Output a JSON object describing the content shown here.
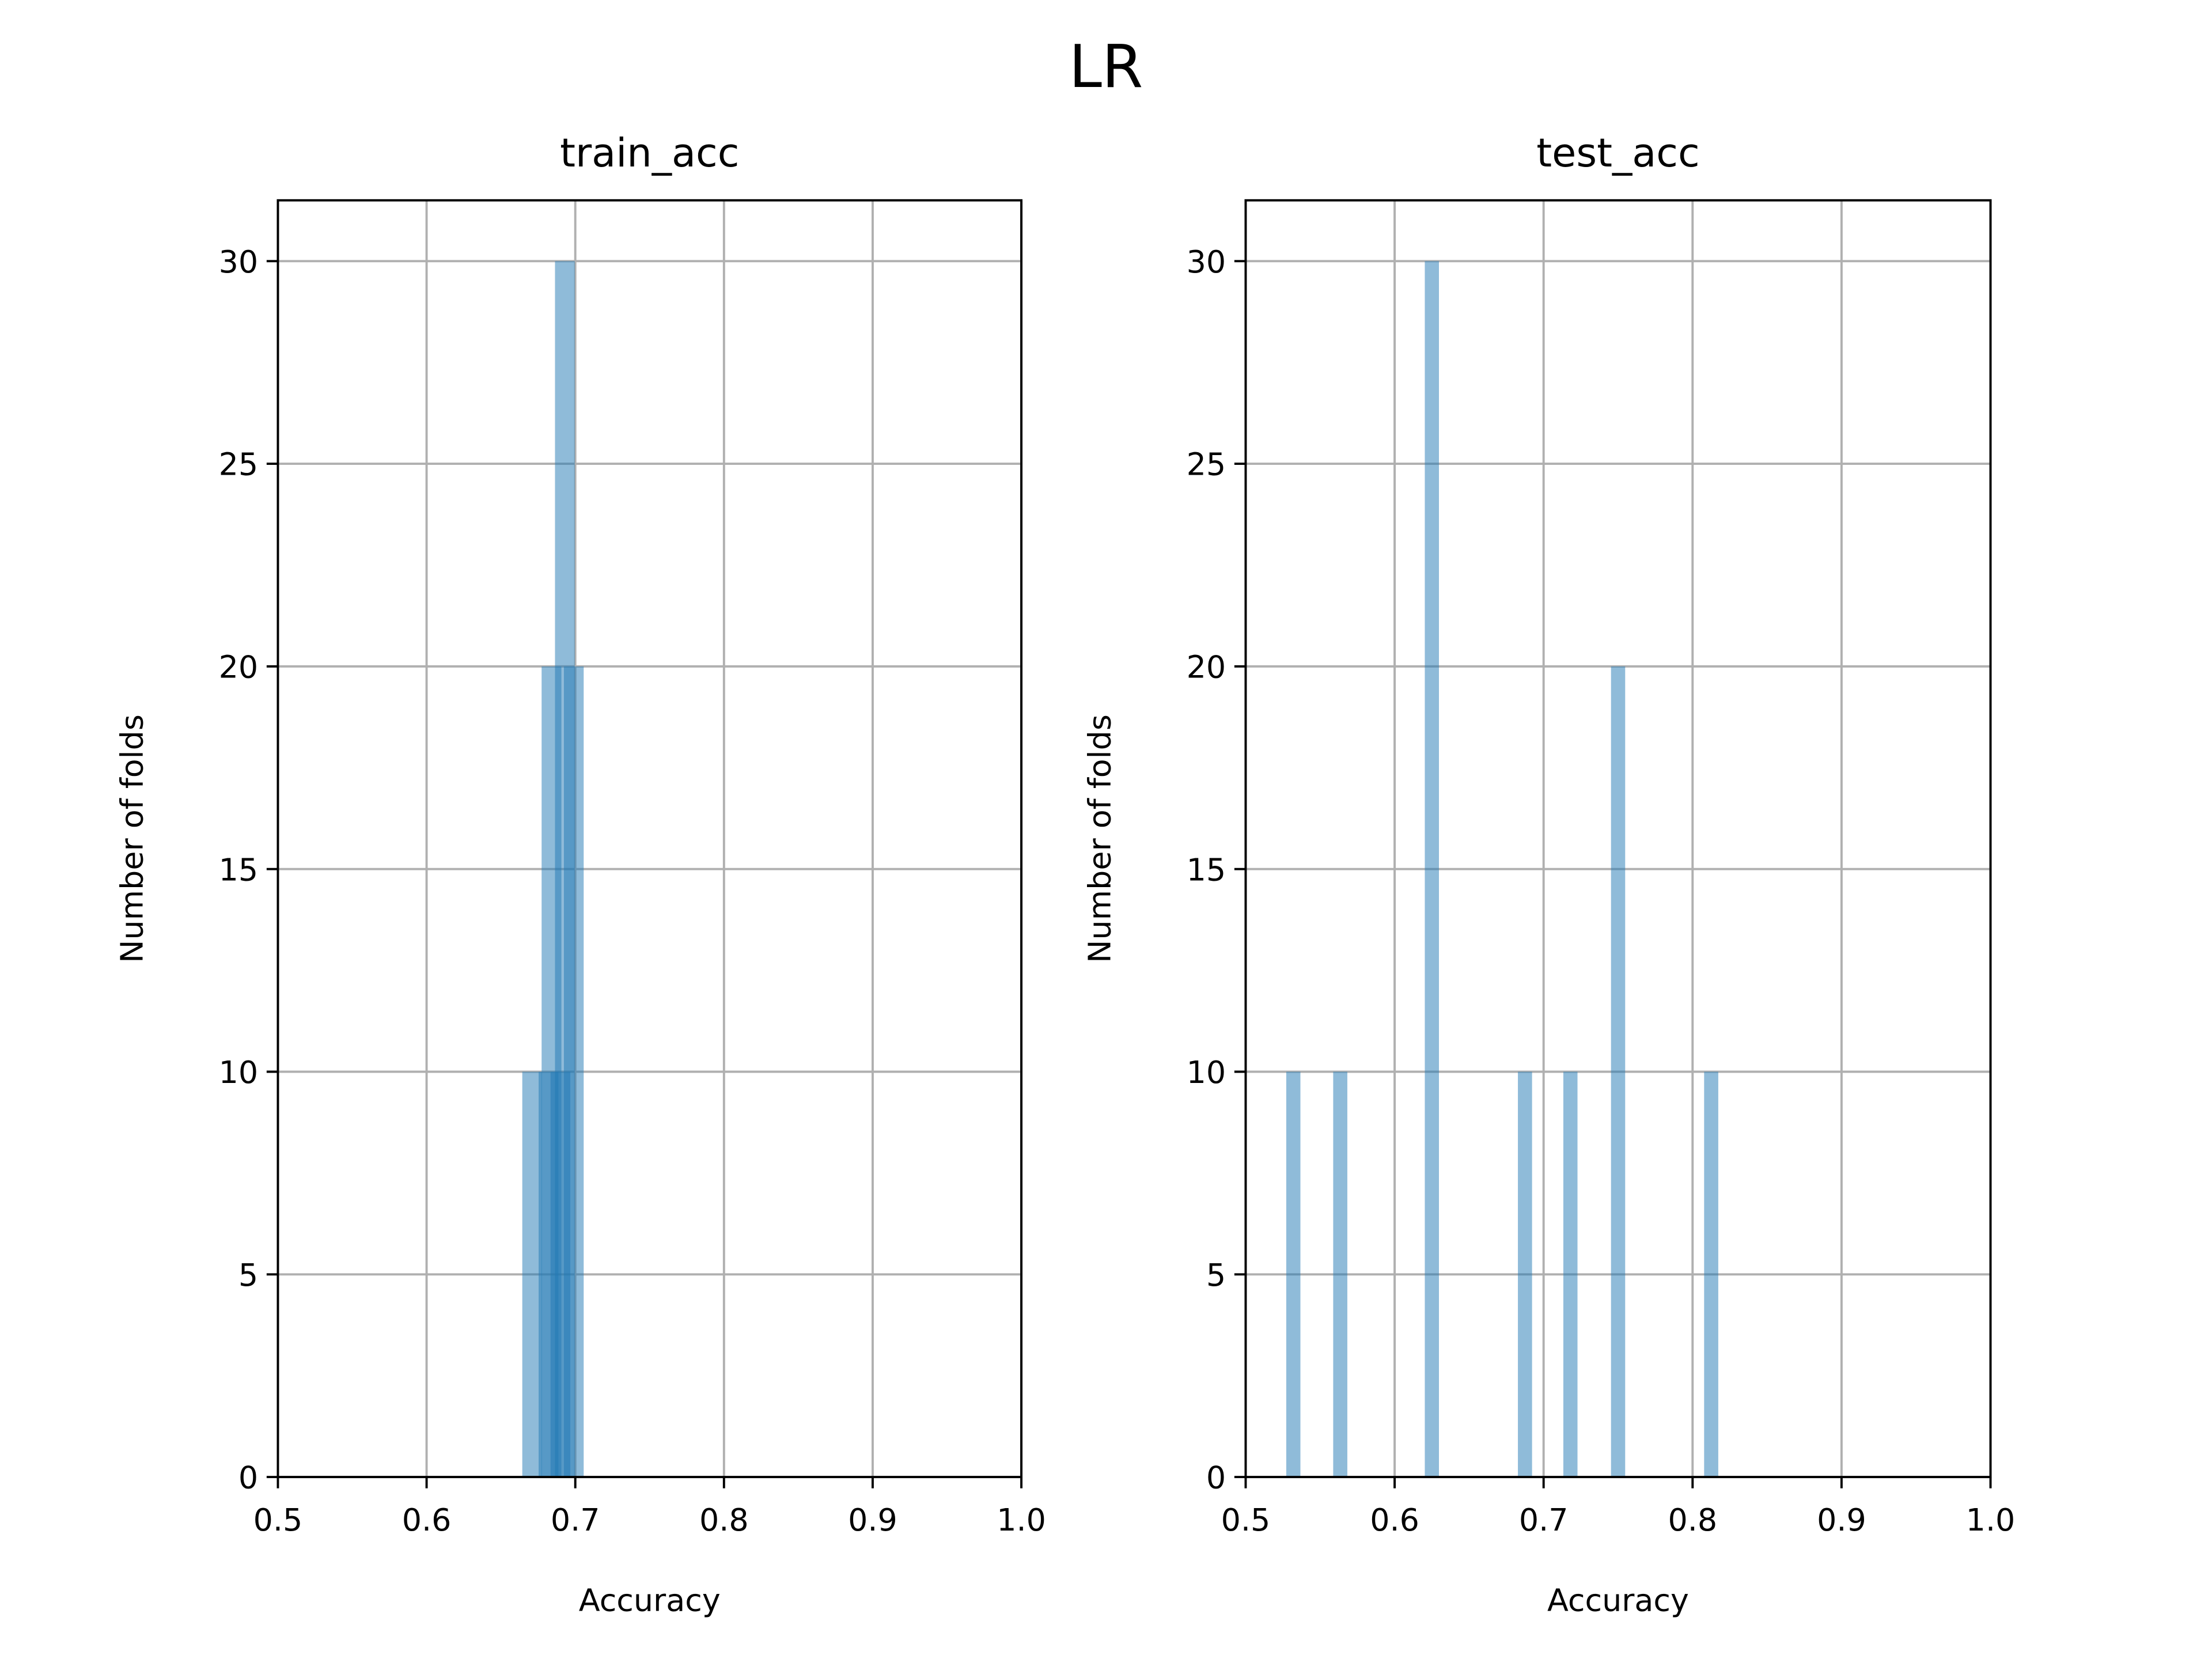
{
  "title": "LR",
  "chart_data": [
    {
      "type": "bar",
      "title": "train_acc",
      "x_label": "Accuracy",
      "y_label": "Number of folds",
      "x": [
        0.671,
        0.682,
        0.684,
        0.69,
        0.693,
        0.699
      ],
      "values": [
        10,
        10,
        20,
        10,
        30,
        20
      ],
      "bar_width": 0.0133,
      "color": "#1f77b4",
      "alpha": 0.5,
      "xlim": [
        0.5,
        1
      ],
      "xticks": [
        0.5,
        0.6,
        0.7,
        0.8,
        0.9,
        {
          "value": 1,
          "label": "1.0"
        }
      ],
      "ylim": [
        0,
        31.5
      ],
      "yticks": [
        0,
        5,
        10,
        15,
        20,
        25,
        30
      ],
      "grid": true
    },
    {
      "type": "bar",
      "title": "test_acc",
      "x_label": "Accuracy",
      "y_label": "Number of folds",
      "x": [
        0.532,
        0.5635,
        0.625,
        0.6875,
        0.718,
        0.75,
        0.8125
      ],
      "values": [
        10,
        10,
        30,
        10,
        10,
        20,
        10
      ],
      "bar_width": 0.0095,
      "color": "#1f77b4",
      "alpha": 0.5,
      "xlim": [
        0.5,
        1
      ],
      "xticks": [
        0.5,
        0.6,
        0.7,
        0.8,
        0.9,
        {
          "value": 1,
          "label": "1.0"
        }
      ],
      "ylim": [
        0,
        31.5
      ],
      "yticks": [
        0,
        5,
        10,
        15,
        20,
        25,
        30
      ],
      "grid": true
    }
  ]
}
